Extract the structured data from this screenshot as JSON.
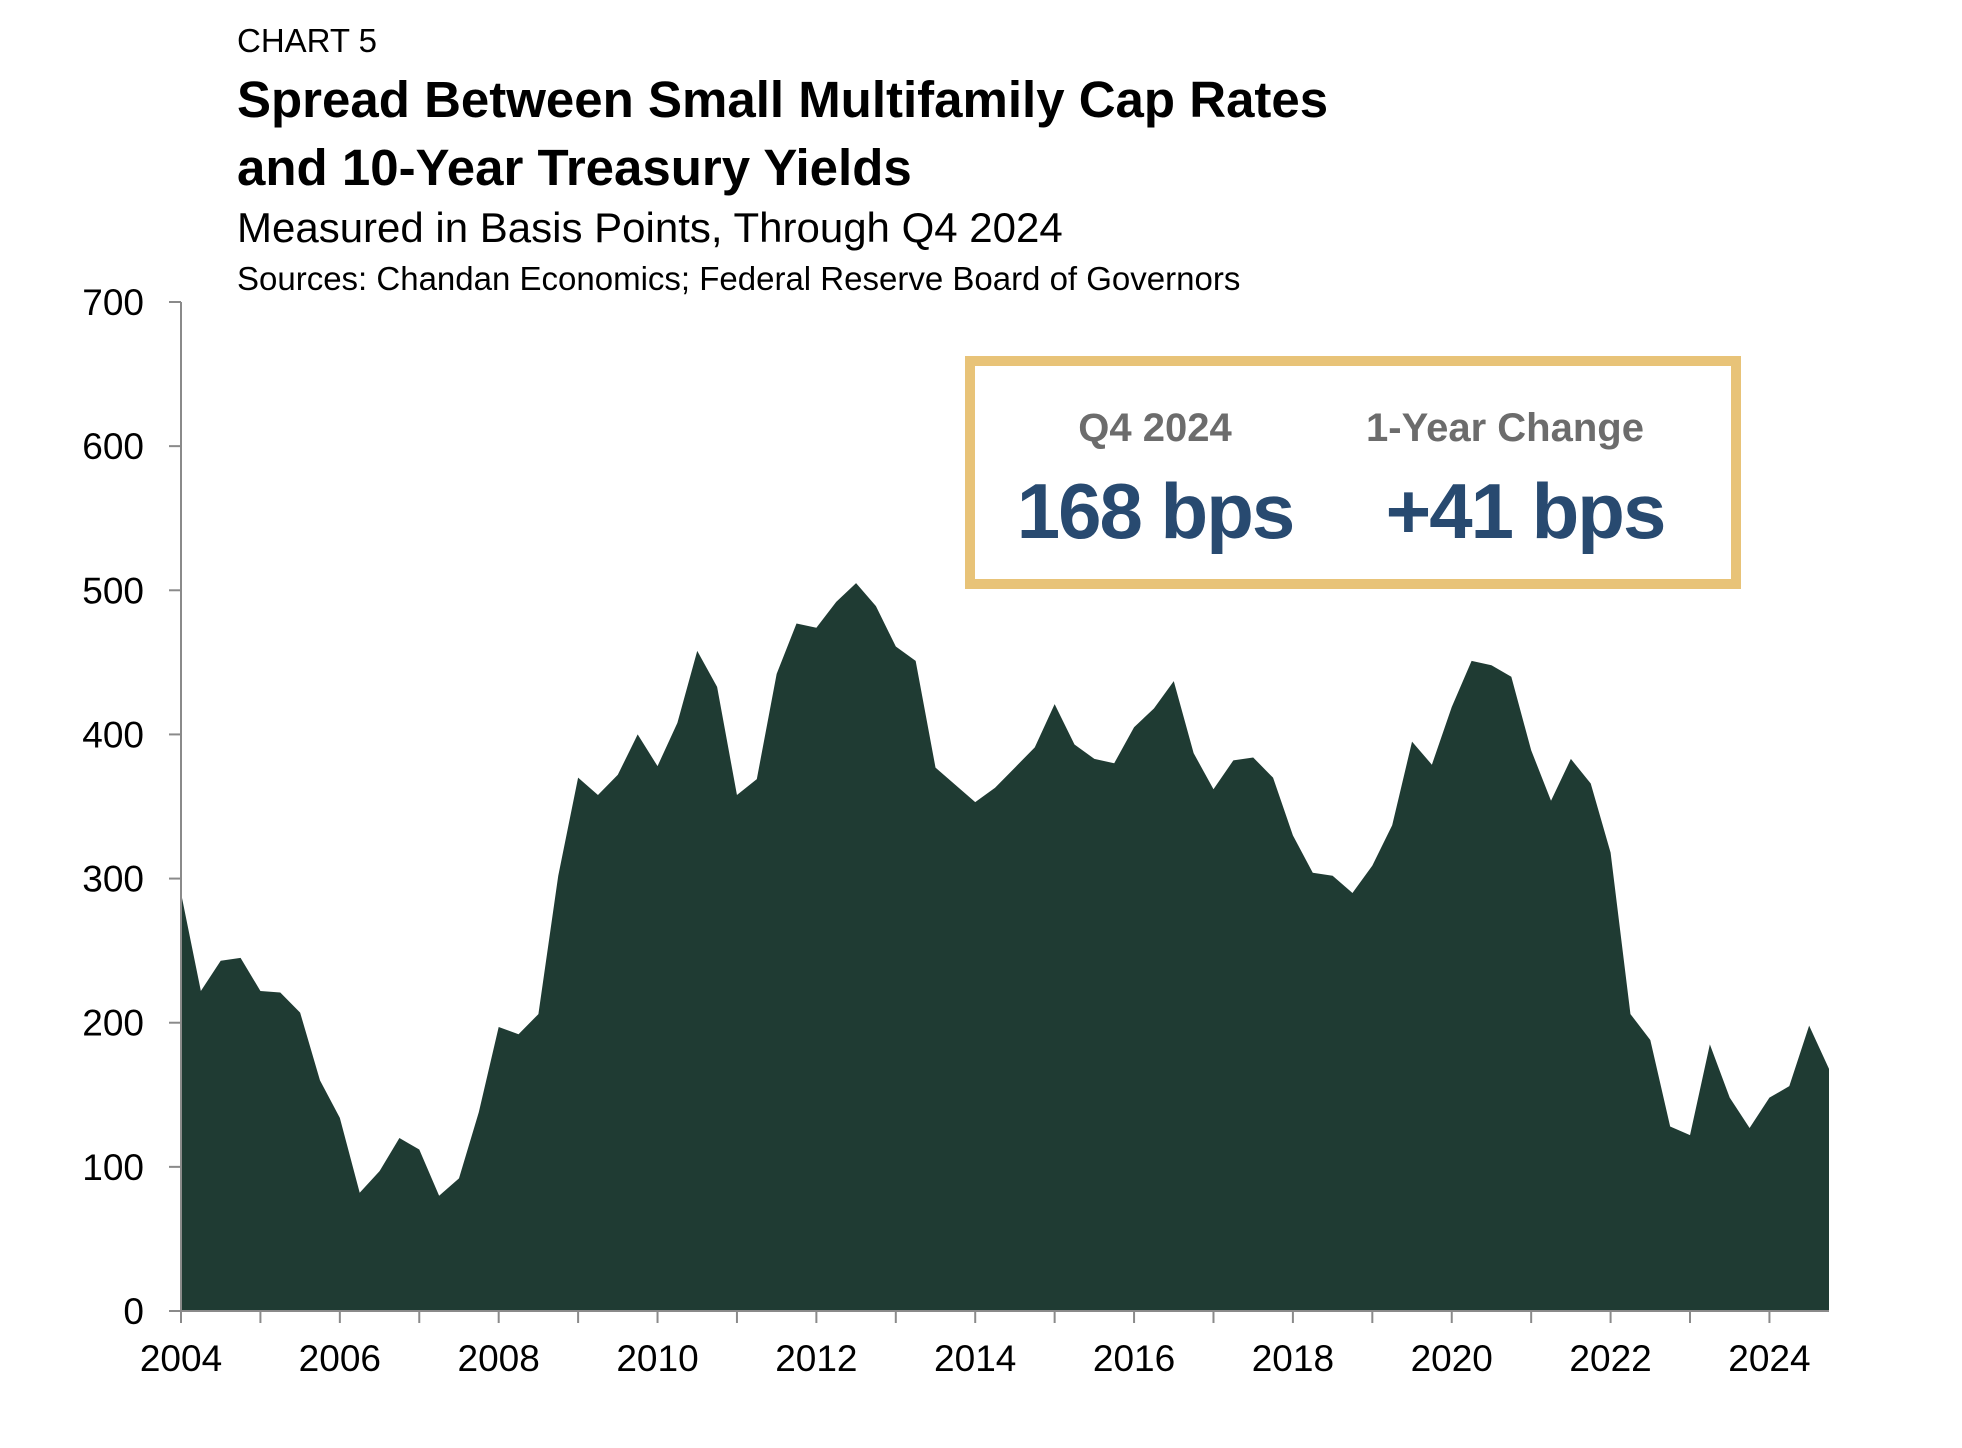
{
  "header": {
    "eyebrow": "CHART 5",
    "title_line1": "Spread Between Small Multifamily Cap Rates",
    "title_line2": "and 10-Year Treasury Yields",
    "subtitle": "Measured in Basis Points, Through Q4 2024",
    "source": "Sources: Chandan Economics; Federal Reserve Board of Governors"
  },
  "kpi_box": {
    "border_color": "#e8c378",
    "value_color": "#284a70",
    "label_color": "#6c6c6c",
    "items": [
      {
        "label": "Q4 2024",
        "value": "168 bps"
      },
      {
        "label": "1-Year Change",
        "value": "+41 bps"
      }
    ]
  },
  "chart_data": {
    "type": "area",
    "title": "Spread Between Small Multifamily Cap Rates and 10-Year Treasury Yields",
    "subtitle": "Measured in Basis Points, Through Q4 2024",
    "xlabel": "",
    "ylabel": "",
    "fill_color": "#1f3b33",
    "ylim": [
      0,
      700
    ],
    "yticks": [
      0,
      100,
      200,
      300,
      400,
      500,
      600,
      700
    ],
    "xlim": [
      2004,
      2024.75
    ],
    "xticks": [
      "2004",
      "2006",
      "2008",
      "2010",
      "2012",
      "2014",
      "2016",
      "2018",
      "2020",
      "2022",
      "2024"
    ],
    "grid": false,
    "legend": "none",
    "series": [
      {
        "x": [
          2004.0,
          2004.25,
          2004.5,
          2004.75,
          2005.0,
          2005.25,
          2005.5,
          2005.75,
          2006.0,
          2006.25,
          2006.5,
          2006.75,
          2007.0,
          2007.25,
          2007.5,
          2007.75,
          2008.0,
          2008.25,
          2008.5,
          2008.75,
          2009.0,
          2009.25,
          2009.5,
          2009.75,
          2010.0,
          2010.25,
          2010.5,
          2010.75,
          2011.0,
          2011.25,
          2011.5,
          2011.75,
          2012.0,
          2012.25,
          2012.5,
          2012.75,
          2013.0,
          2013.25,
          2013.5,
          2013.75,
          2014.0,
          2014.25,
          2014.5,
          2014.75,
          2015.0,
          2015.25,
          2015.5,
          2015.75,
          2016.0,
          2016.25,
          2016.5,
          2016.75,
          2017.0,
          2017.25,
          2017.5,
          2017.75,
          2018.0,
          2018.25,
          2018.5,
          2018.75,
          2019.0,
          2019.25,
          2019.5,
          2019.75,
          2020.0,
          2020.25,
          2020.5,
          2020.75,
          2021.0,
          2021.25,
          2021.5,
          2021.75,
          2022.0,
          2022.25,
          2022.5,
          2022.75,
          2023.0,
          2023.25,
          2023.5,
          2023.75,
          2024.0,
          2024.25,
          2024.5,
          2024.75
        ],
        "values": [
          290,
          222,
          243,
          245,
          222,
          221,
          207,
          160,
          134,
          82,
          97,
          120,
          112,
          80,
          92,
          138,
          197,
          192,
          206,
          302,
          370,
          358,
          372,
          400,
          378,
          408,
          458,
          433,
          358,
          369,
          442,
          477,
          474,
          492,
          505,
          489,
          461,
          451,
          377,
          365,
          353,
          363,
          377,
          391,
          421,
          393,
          383,
          380,
          405,
          418,
          437,
          387,
          362,
          382,
          384,
          370,
          330,
          304,
          302,
          290,
          309,
          337,
          395,
          379,
          419,
          451,
          448,
          440,
          389,
          354,
          383,
          366,
          318,
          206,
          188,
          128,
          122,
          185,
          148,
          127,
          148,
          156,
          198,
          168
        ]
      }
    ]
  }
}
